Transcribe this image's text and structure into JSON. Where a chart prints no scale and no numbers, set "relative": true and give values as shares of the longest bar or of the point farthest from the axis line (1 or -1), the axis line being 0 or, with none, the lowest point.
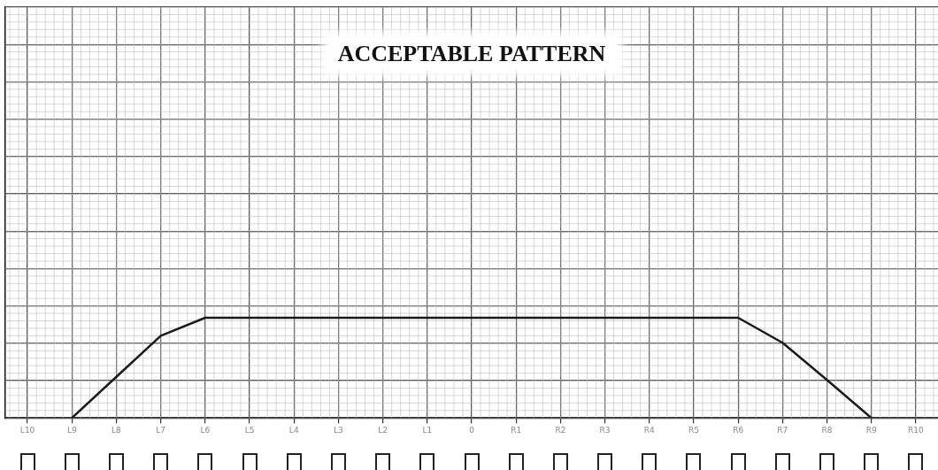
{
  "chart_data": {
    "type": "line",
    "title": "ACCEPTABLE PATTERN",
    "relative": true,
    "categories": [
      "L10",
      "L9",
      "L8",
      "L7",
      "L6",
      "L5",
      "L4",
      "L3",
      "L2",
      "L1",
      "0",
      "R1",
      "R2",
      "R3",
      "R4",
      "R5",
      "R6",
      "R7",
      "R8",
      "R9",
      "R10"
    ],
    "series": [
      {
        "color": "#1a1a1a",
        "values": [
          null,
          0,
          0.41,
          0.82,
          1,
          1,
          1,
          1,
          1,
          1,
          1,
          1,
          1,
          1,
          1,
          1,
          1,
          0.75,
          0.38,
          0,
          null
        ]
      }
    ],
    "grid": true,
    "marker": "none",
    "line_style": "solid",
    "legend": false
  }
}
